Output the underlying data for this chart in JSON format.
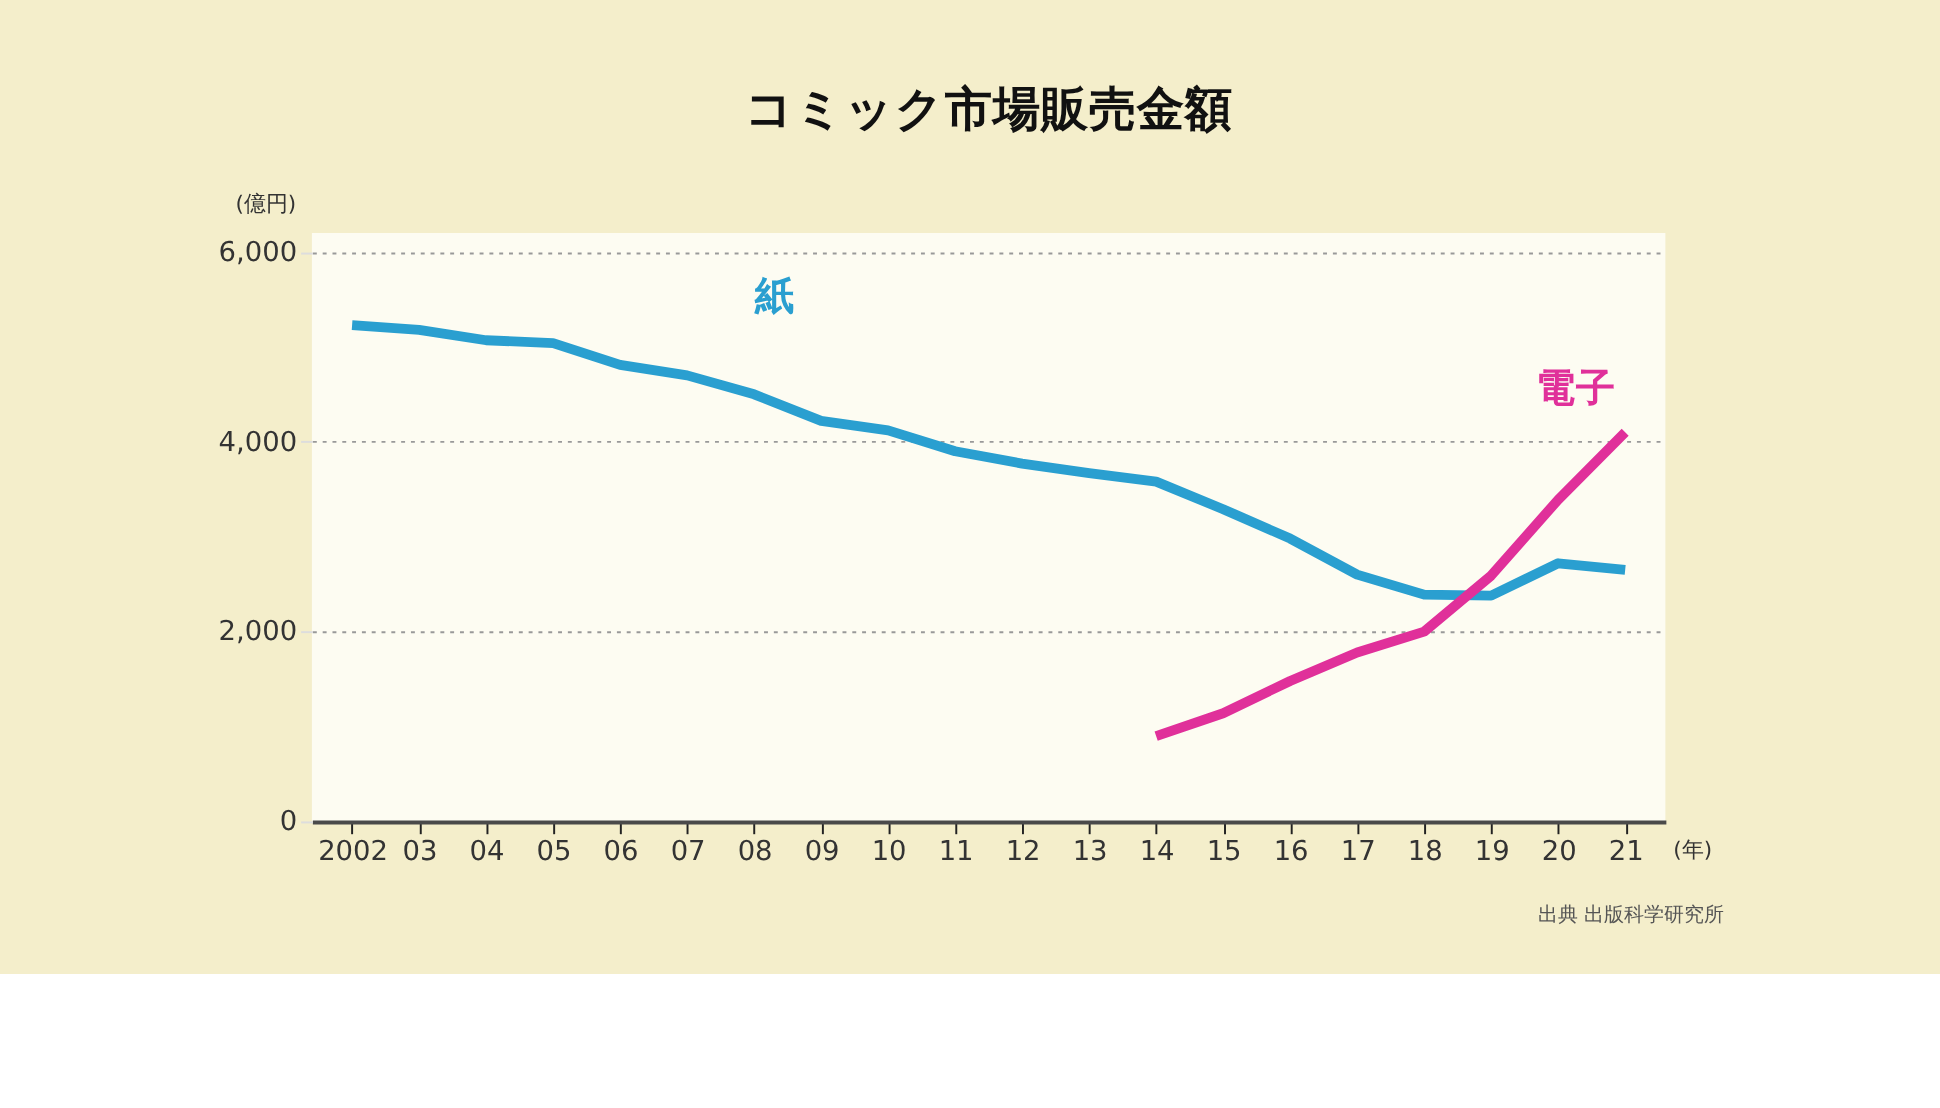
{
  "chart_data": {
    "type": "line",
    "title": "コミック市場販売金額",
    "ylabel": "(億円)",
    "xlabel": "(年)",
    "x": [
      2002,
      2003,
      2004,
      2005,
      2006,
      2007,
      2008,
      2009,
      2010,
      2011,
      2012,
      2013,
      2014,
      2015,
      2016,
      2017,
      2018,
      2019,
      2020,
      2021
    ],
    "series": [
      {
        "name": "紙",
        "color": "#2a9fd0",
        "values": [
          5230,
          5180,
          5070,
          5040,
          4810,
          4700,
          4500,
          4220,
          4120,
          3900,
          3770,
          3670,
          3580,
          3290,
          2980,
          2600,
          2390,
          2380,
          2720,
          2650
        ]
      },
      {
        "name": "電子",
        "color": "#e0309a",
        "x": [
          2014,
          2015,
          2016,
          2017,
          2018,
          2019,
          2020,
          2021
        ],
        "values": [
          900,
          1140,
          1480,
          1780,
          2000,
          2590,
          3390,
          4100
        ]
      }
    ],
    "xlim": [
      2001.4,
      2021.6
    ],
    "xticks": [
      {
        "value": 2002,
        "label": "2002"
      },
      {
        "value": 2003,
        "label": "03"
      },
      {
        "value": 2004,
        "label": "04"
      },
      {
        "value": 2005,
        "label": "05"
      },
      {
        "value": 2006,
        "label": "06"
      },
      {
        "value": 2007,
        "label": "07"
      },
      {
        "value": 2008,
        "label": "08"
      },
      {
        "value": 2009,
        "label": "09"
      },
      {
        "value": 2010,
        "label": "10"
      },
      {
        "value": 2011,
        "label": "11"
      },
      {
        "value": 2012,
        "label": "12"
      },
      {
        "value": 2013,
        "label": "13"
      },
      {
        "value": 2014,
        "label": "14"
      },
      {
        "value": 2015,
        "label": "15"
      },
      {
        "value": 2016,
        "label": "16"
      },
      {
        "value": 2017,
        "label": "17"
      },
      {
        "value": 2018,
        "label": "18"
      },
      {
        "value": 2019,
        "label": "19"
      },
      {
        "value": 2020,
        "label": "20"
      },
      {
        "value": 2021,
        "label": "21"
      }
    ],
    "ylim": [
      0,
      6200
    ],
    "yticks": [
      0,
      {
        "value": 2000,
        "label": "2,000"
      },
      {
        "value": 4000,
        "label": "4,000"
      },
      {
        "value": 6000,
        "label": "6,000"
      }
    ],
    "grid": "y",
    "legend": false,
    "marker": "none",
    "line_style": "solid",
    "annotations": [
      "出典 出版科学研究所"
    ]
  }
}
